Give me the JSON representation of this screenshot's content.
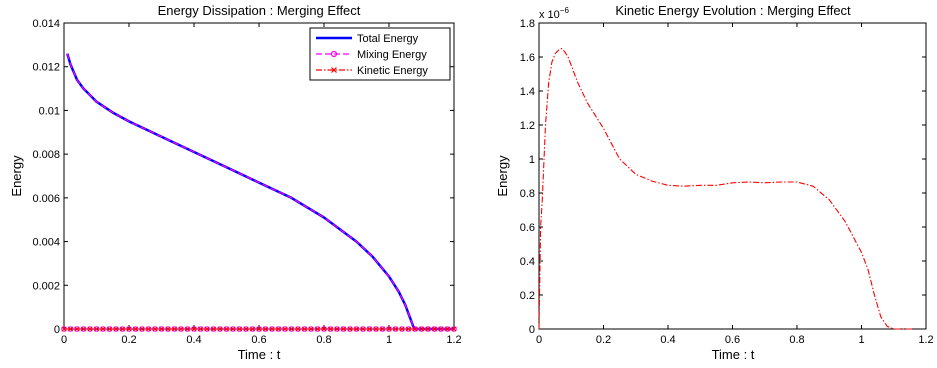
{
  "colors": {
    "axis": "#000000",
    "total_energy": "#0000ff",
    "mixing_energy": "#ff00ff",
    "kinetic_energy": "#ff0000"
  },
  "chart_data": [
    {
      "type": "line",
      "title": "Energy Dissipation : Merging Effect",
      "xlabel": "Time : t",
      "ylabel": "Energy",
      "xlim": [
        0,
        1.2
      ],
      "ylim": [
        0,
        0.014
      ],
      "xticks": [
        "0",
        "0.2",
        "0.4",
        "0.6",
        "0.8",
        "1",
        "1.2"
      ],
      "yticks": [
        "0",
        "0.002",
        "0.004",
        "0.006",
        "0.008",
        "0.01",
        "0.012",
        "0.014"
      ],
      "grid": false,
      "legend_position": "top-right",
      "series": [
        {
          "name": "Total Energy",
          "style": "solid",
          "color": "#0000ff",
          "x": [
            0.01,
            0.02,
            0.04,
            0.06,
            0.08,
            0.1,
            0.15,
            0.2,
            0.3,
            0.4,
            0.5,
            0.6,
            0.7,
            0.8,
            0.9,
            0.95,
            1.0,
            1.03,
            1.05,
            1.06,
            1.07,
            1.075,
            1.08,
            1.1,
            1.15,
            1.2
          ],
          "y": [
            0.0126,
            0.0121,
            0.0114,
            0.011,
            0.0107,
            0.0104,
            0.0099,
            0.0095,
            0.0088,
            0.0081,
            0.0074,
            0.0067,
            0.006,
            0.0051,
            0.004,
            0.0033,
            0.0024,
            0.0017,
            0.0011,
            0.0007,
            0.0003,
            0.0001,
            0.0,
            0.0,
            0.0,
            0.0
          ]
        },
        {
          "name": "Mixing Energy",
          "style": "dashed-circle",
          "color": "#ff00ff",
          "x": [
            0.01,
            0.02,
            0.04,
            0.06,
            0.08,
            0.1,
            0.15,
            0.2,
            0.3,
            0.4,
            0.5,
            0.6,
            0.7,
            0.8,
            0.9,
            0.95,
            1.0,
            1.03,
            1.05,
            1.06,
            1.07,
            1.075,
            1.08,
            1.1,
            1.15,
            1.2
          ],
          "y": [
            0.0126,
            0.0121,
            0.0114,
            0.011,
            0.0107,
            0.0104,
            0.0099,
            0.0095,
            0.0088,
            0.0081,
            0.0074,
            0.0067,
            0.006,
            0.0051,
            0.004,
            0.0033,
            0.0024,
            0.0017,
            0.0011,
            0.0007,
            0.0003,
            0.0001,
            0.0,
            0.0,
            0.0,
            0.0
          ]
        },
        {
          "name": "Kinetic Energy",
          "style": "dashdot-x",
          "color": "#ff0000",
          "x": [
            0.0,
            0.2,
            0.4,
            0.6,
            0.8,
            1.0,
            1.2
          ],
          "y": [
            0.0,
            0.0,
            0.0,
            0.0,
            0.0,
            0.0,
            0.0
          ]
        }
      ]
    },
    {
      "type": "line",
      "title": "Kinetic Energy Evolution : Merging Effect",
      "xlabel": "Time : t",
      "ylabel": "Energy",
      "xlim": [
        0,
        1.2
      ],
      "ylim": [
        0,
        1.8
      ],
      "y_multiplier": "x 10",
      "y_multiplier_exp": "−6",
      "xticks": [
        "0",
        "0.2",
        "0.4",
        "0.6",
        "0.8",
        "1",
        "1.2"
      ],
      "yticks": [
        "0",
        "0.2",
        "0.4",
        "0.6",
        "0.8",
        "1",
        "1.2",
        "1.4",
        "1.6",
        "1.8"
      ],
      "grid": false,
      "series": [
        {
          "style": "dashdot",
          "color": "#ff0000",
          "x": [
            0.0,
            0.005,
            0.01,
            0.02,
            0.03,
            0.04,
            0.05,
            0.06,
            0.07,
            0.08,
            0.09,
            0.1,
            0.12,
            0.15,
            0.2,
            0.25,
            0.3,
            0.35,
            0.4,
            0.45,
            0.5,
            0.55,
            0.6,
            0.65,
            0.7,
            0.75,
            0.8,
            0.85,
            0.9,
            0.95,
            1.0,
            1.02,
            1.04,
            1.06,
            1.08,
            1.1,
            1.12,
            1.14,
            1.16
          ],
          "y": [
            0.0,
            0.6,
            0.75,
            1.2,
            1.45,
            1.57,
            1.62,
            1.64,
            1.65,
            1.63,
            1.6,
            1.55,
            1.45,
            1.33,
            1.18,
            1.0,
            0.91,
            0.87,
            0.845,
            0.84,
            0.845,
            0.845,
            0.86,
            0.865,
            0.86,
            0.865,
            0.865,
            0.84,
            0.76,
            0.63,
            0.45,
            0.35,
            0.2,
            0.07,
            0.015,
            0.0,
            0.0,
            0.0,
            0.0
          ]
        }
      ]
    }
  ]
}
